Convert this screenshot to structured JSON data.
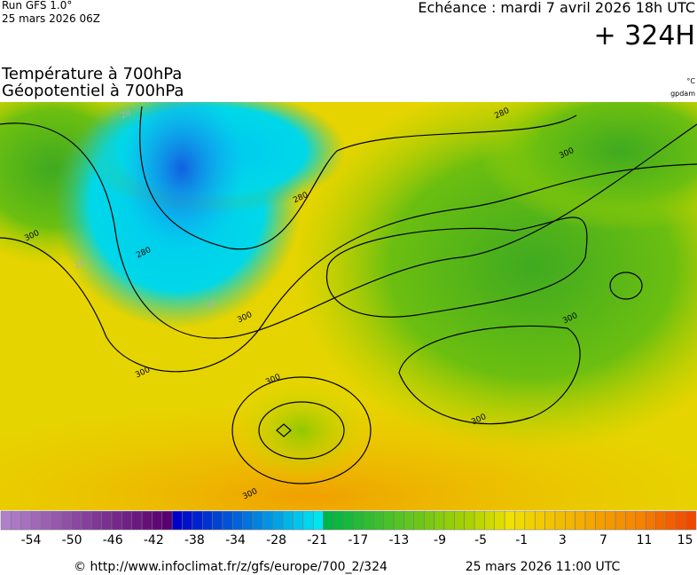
{
  "header": {
    "run": "Run GFS 1.0°",
    "run_date": "25 mars 2026 06Z",
    "valid": "Echéance : mardi 7 avril 2026 18h UTC",
    "lead": "+ 324H",
    "title_line1": "Température à 700hPa",
    "title_line2": "Géopotentiel à 700hPa",
    "unit_temp": "°C",
    "unit_geo": "gpdam"
  },
  "map": {
    "contour_labels": [
      "20",
      "280",
      "280",
      "280",
      "300",
      "300",
      "300",
      "300",
      "300",
      "300",
      "300",
      "300",
      "20",
      "20"
    ]
  },
  "colorbar": {
    "labels": [
      -54,
      -50,
      -46,
      -42,
      -38,
      -34,
      -28,
      -21,
      -17,
      -13,
      -9,
      -5,
      -1,
      3,
      7,
      11,
      15
    ]
  },
  "footer": {
    "url": "© http://www.infoclimat.fr/z/gfs/europe/700_2/324",
    "timestamp": "25 mars 2026 11:00 UTC"
  }
}
